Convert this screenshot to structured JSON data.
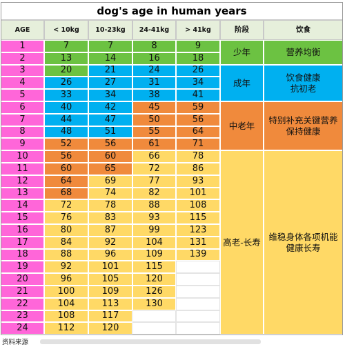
{
  "title": "dog's age in human years",
  "headers": [
    "AGE",
    "< 10kg",
    "10-23kg",
    "24-41kg",
    "> 41kg",
    "阶段",
    "饮食"
  ],
  "rows": [
    {
      "age": "1",
      "v": [
        "7",
        "7",
        "8",
        "9"
      ],
      "c": [
        "green",
        "green",
        "green",
        "green"
      ]
    },
    {
      "age": "2",
      "v": [
        "13",
        "14",
        "16",
        "18"
      ],
      "c": [
        "green",
        "green",
        "green",
        "green"
      ]
    },
    {
      "age": "3",
      "v": [
        "20",
        "21",
        "24",
        "26"
      ],
      "c": [
        "green",
        "blue",
        "blue",
        "blue"
      ]
    },
    {
      "age": "4",
      "v": [
        "26",
        "27",
        "31",
        "34"
      ],
      "c": [
        "blue",
        "blue",
        "blue",
        "blue"
      ]
    },
    {
      "age": "5",
      "v": [
        "33",
        "34",
        "38",
        "41"
      ],
      "c": [
        "blue",
        "blue",
        "blue",
        "blue"
      ]
    },
    {
      "age": "6",
      "v": [
        "40",
        "42",
        "45",
        "59"
      ],
      "c": [
        "blue",
        "blue",
        "orange",
        "orange"
      ]
    },
    {
      "age": "7",
      "v": [
        "44",
        "47",
        "50",
        "56"
      ],
      "c": [
        "blue",
        "blue",
        "orange",
        "orange"
      ]
    },
    {
      "age": "8",
      "v": [
        "48",
        "51",
        "55",
        "64"
      ],
      "c": [
        "blue",
        "blue",
        "orange",
        "orange"
      ]
    },
    {
      "age": "9",
      "v": [
        "52",
        "56",
        "61",
        "71"
      ],
      "c": [
        "orange",
        "orange",
        "orange",
        "orange"
      ]
    },
    {
      "age": "10",
      "v": [
        "56",
        "60",
        "66",
        "78"
      ],
      "c": [
        "orange",
        "orange",
        "yellow",
        "yellow"
      ]
    },
    {
      "age": "11",
      "v": [
        "60",
        "65",
        "72",
        "86"
      ],
      "c": [
        "orange",
        "orange",
        "yellow",
        "yellow"
      ]
    },
    {
      "age": "12",
      "v": [
        "64",
        "69",
        "77",
        "93"
      ],
      "c": [
        "orange",
        "yellow",
        "yellow",
        "yellow"
      ]
    },
    {
      "age": "13",
      "v": [
        "68",
        "74",
        "82",
        "101"
      ],
      "c": [
        "orange",
        "yellow",
        "yellow",
        "yellow"
      ]
    },
    {
      "age": "14",
      "v": [
        "72",
        "78",
        "88",
        "108"
      ],
      "c": [
        "yellow",
        "yellow",
        "yellow",
        "yellow"
      ]
    },
    {
      "age": "15",
      "v": [
        "76",
        "83",
        "93",
        "115"
      ],
      "c": [
        "yellow",
        "yellow",
        "yellow",
        "yellow"
      ]
    },
    {
      "age": "16",
      "v": [
        "80",
        "87",
        "99",
        "123"
      ],
      "c": [
        "yellow",
        "yellow",
        "yellow",
        "yellow"
      ]
    },
    {
      "age": "17",
      "v": [
        "84",
        "92",
        "104",
        "131"
      ],
      "c": [
        "yellow",
        "yellow",
        "yellow",
        "yellow"
      ]
    },
    {
      "age": "18",
      "v": [
        "88",
        "96",
        "109",
        "139"
      ],
      "c": [
        "yellow",
        "yellow",
        "yellow",
        "yellow"
      ]
    },
    {
      "age": "19",
      "v": [
        "92",
        "101",
        "115",
        ""
      ],
      "c": [
        "yellow",
        "yellow",
        "yellow",
        "blank"
      ]
    },
    {
      "age": "20",
      "v": [
        "96",
        "105",
        "120",
        ""
      ],
      "c": [
        "yellow",
        "yellow",
        "yellow",
        "blank"
      ]
    },
    {
      "age": "21",
      "v": [
        "100",
        "109",
        "126",
        ""
      ],
      "c": [
        "yellow",
        "yellow",
        "yellow",
        "blank"
      ]
    },
    {
      "age": "22",
      "v": [
        "104",
        "113",
        "130",
        ""
      ],
      "c": [
        "yellow",
        "yellow",
        "yellow",
        "blank"
      ]
    },
    {
      "age": "23",
      "v": [
        "108",
        "117",
        "",
        ""
      ],
      "c": [
        "yellow",
        "yellow",
        "blank",
        "blank"
      ]
    },
    {
      "age": "24",
      "v": [
        "112",
        "120",
        "",
        ""
      ],
      "c": [
        "yellow",
        "yellow",
        "blank",
        "blank"
      ]
    }
  ],
  "stages": [
    {
      "label": "少年",
      "from": 0,
      "to": 1,
      "color": "green"
    },
    {
      "label": "成年",
      "from": 2,
      "to": 4,
      "color": "blue"
    },
    {
      "label": "中老年",
      "from": 5,
      "to": 8,
      "color": "orange"
    },
    {
      "label": "高老-长寿",
      "from": 9,
      "to": 23,
      "color": "yellow"
    }
  ],
  "diets": [
    {
      "label": "营养均衡",
      "from": 0,
      "to": 1,
      "color": "green"
    },
    {
      "label": "饮食健康\n抗初老",
      "from": 2,
      "to": 4,
      "color": "blue"
    },
    {
      "label": "特别补充关键营养\n保持健康",
      "from": 5,
      "to": 8,
      "color": "orange"
    },
    {
      "label": "维稳身体各项机能\n健康长寿",
      "from": 9,
      "to": 23,
      "color": "yellow"
    }
  ],
  "source_label": "资料来源",
  "colors": {
    "age": "#ff66d9",
    "header": "#e6efdb",
    "green": "#6cc242",
    "blue": "#00b0f0",
    "orange": "#f08a3c",
    "yellow": "#ffd966",
    "blank": "#ffffff"
  }
}
